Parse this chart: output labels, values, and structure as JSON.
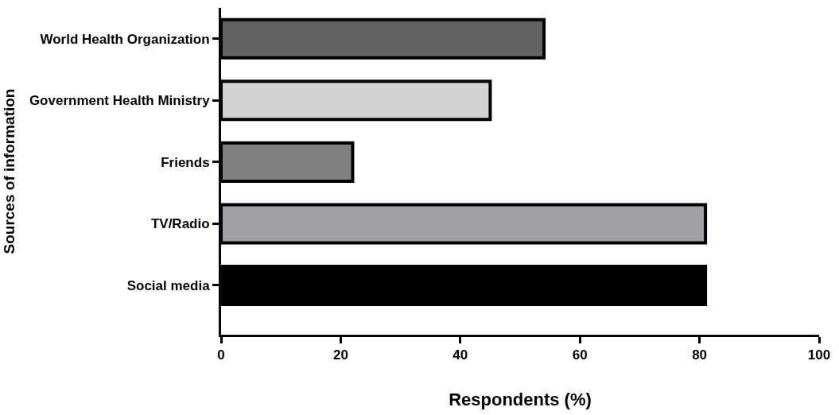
{
  "chart_data": {
    "type": "bar",
    "orientation": "horizontal",
    "xlabel": "Respondents (%)",
    "ylabel": "Sources of information",
    "categories": [
      "World Health Organization",
      "Government Health Ministry",
      "Friends",
      "TV/Radio",
      "Social media"
    ],
    "values": [
      54,
      45,
      22,
      81,
      81
    ],
    "colors": [
      "#636363",
      "#d3d3d3",
      "#7f7f7f",
      "#a1a0a5",
      "#000000"
    ],
    "xlim": [
      0,
      100
    ],
    "xticks": [
      0,
      20,
      40,
      60,
      80,
      100
    ]
  }
}
